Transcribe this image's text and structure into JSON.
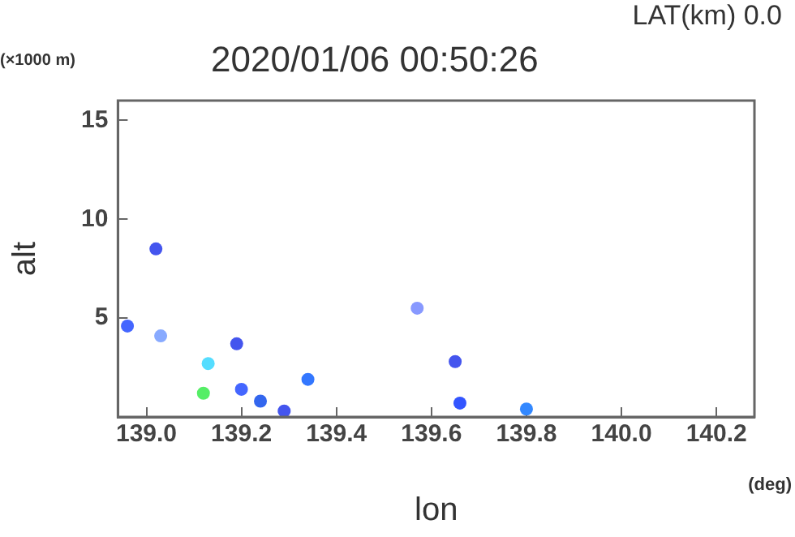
{
  "chart_data": {
    "type": "scatter",
    "title": "2020/01/06 00:50:26",
    "xlabel": "lon",
    "ylabel": "alt",
    "annotations": [
      "LAT(km) 0.0",
      "(×1000 m)",
      "(deg)"
    ],
    "x": [
      138.96,
      139.02,
      139.03,
      139.12,
      139.13,
      139.19,
      139.2,
      139.24,
      139.29,
      139.34,
      139.57,
      139.65,
      139.66,
      139.8
    ],
    "values": [
      4.6,
      8.5,
      4.1,
      1.2,
      2.7,
      3.7,
      1.4,
      0.8,
      0.3,
      1.9,
      5.5,
      2.8,
      0.7,
      0.4
    ],
    "colors": [
      "#4466ff",
      "#4455ee",
      "#88aaff",
      "#55ee66",
      "#55ddff",
      "#4455ee",
      "#4466ff",
      "#3366ee",
      "#4455ee",
      "#3377ff",
      "#8899ff",
      "#4455ee",
      "#3355ff",
      "#3388ff"
    ],
    "xlim": [
      138.94,
      140.28
    ],
    "xticks": [
      {
        "value": 139,
        "label": "139.0"
      },
      139.2,
      139.4,
      139.6,
      139.8,
      {
        "value": 140,
        "label": "140.0"
      },
      140.2
    ],
    "ylim": [
      0,
      16
    ],
    "yticks": [
      5,
      10,
      15
    ],
    "grid": false,
    "legend": false,
    "marker": "circle"
  }
}
